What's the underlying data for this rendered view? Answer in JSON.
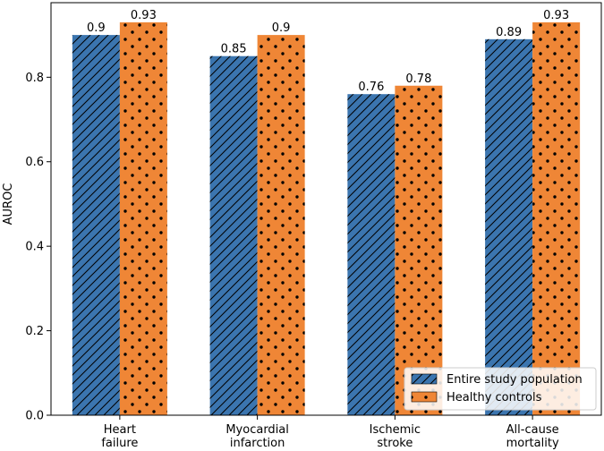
{
  "chart_data": {
    "type": "bar",
    "title": "",
    "xlabel": "",
    "ylabel": "AUROC",
    "ylim": [
      0,
      0.9765
    ],
    "yticks": [
      0.0,
      0.2,
      0.4,
      0.6,
      0.8
    ],
    "ytick_labels": [
      "0.0",
      "0.2",
      "0.4",
      "0.6",
      "0.8"
    ],
    "categories": [
      [
        "Heart",
        "failure"
      ],
      [
        "Myocardial",
        "infarction"
      ],
      [
        "Ischemic",
        "stroke"
      ],
      [
        "All-cause",
        "mortality"
      ]
    ],
    "series": [
      {
        "name": "Entire study population",
        "color": "#3b75af",
        "hatch": "diagonal",
        "values": [
          0.9,
          0.85,
          0.76,
          0.89
        ],
        "labels": [
          "0.9",
          "0.85",
          "0.76",
          "0.89"
        ]
      },
      {
        "name": "Healthy controls",
        "color": "#ef8636",
        "hatch": "dots",
        "values": [
          0.93,
          0.9,
          0.78,
          0.93
        ],
        "labels": [
          "0.93",
          "0.9",
          "0.78",
          "0.93"
        ]
      }
    ],
    "legend": {
      "placement": "bottom-right"
    },
    "grid": false
  }
}
